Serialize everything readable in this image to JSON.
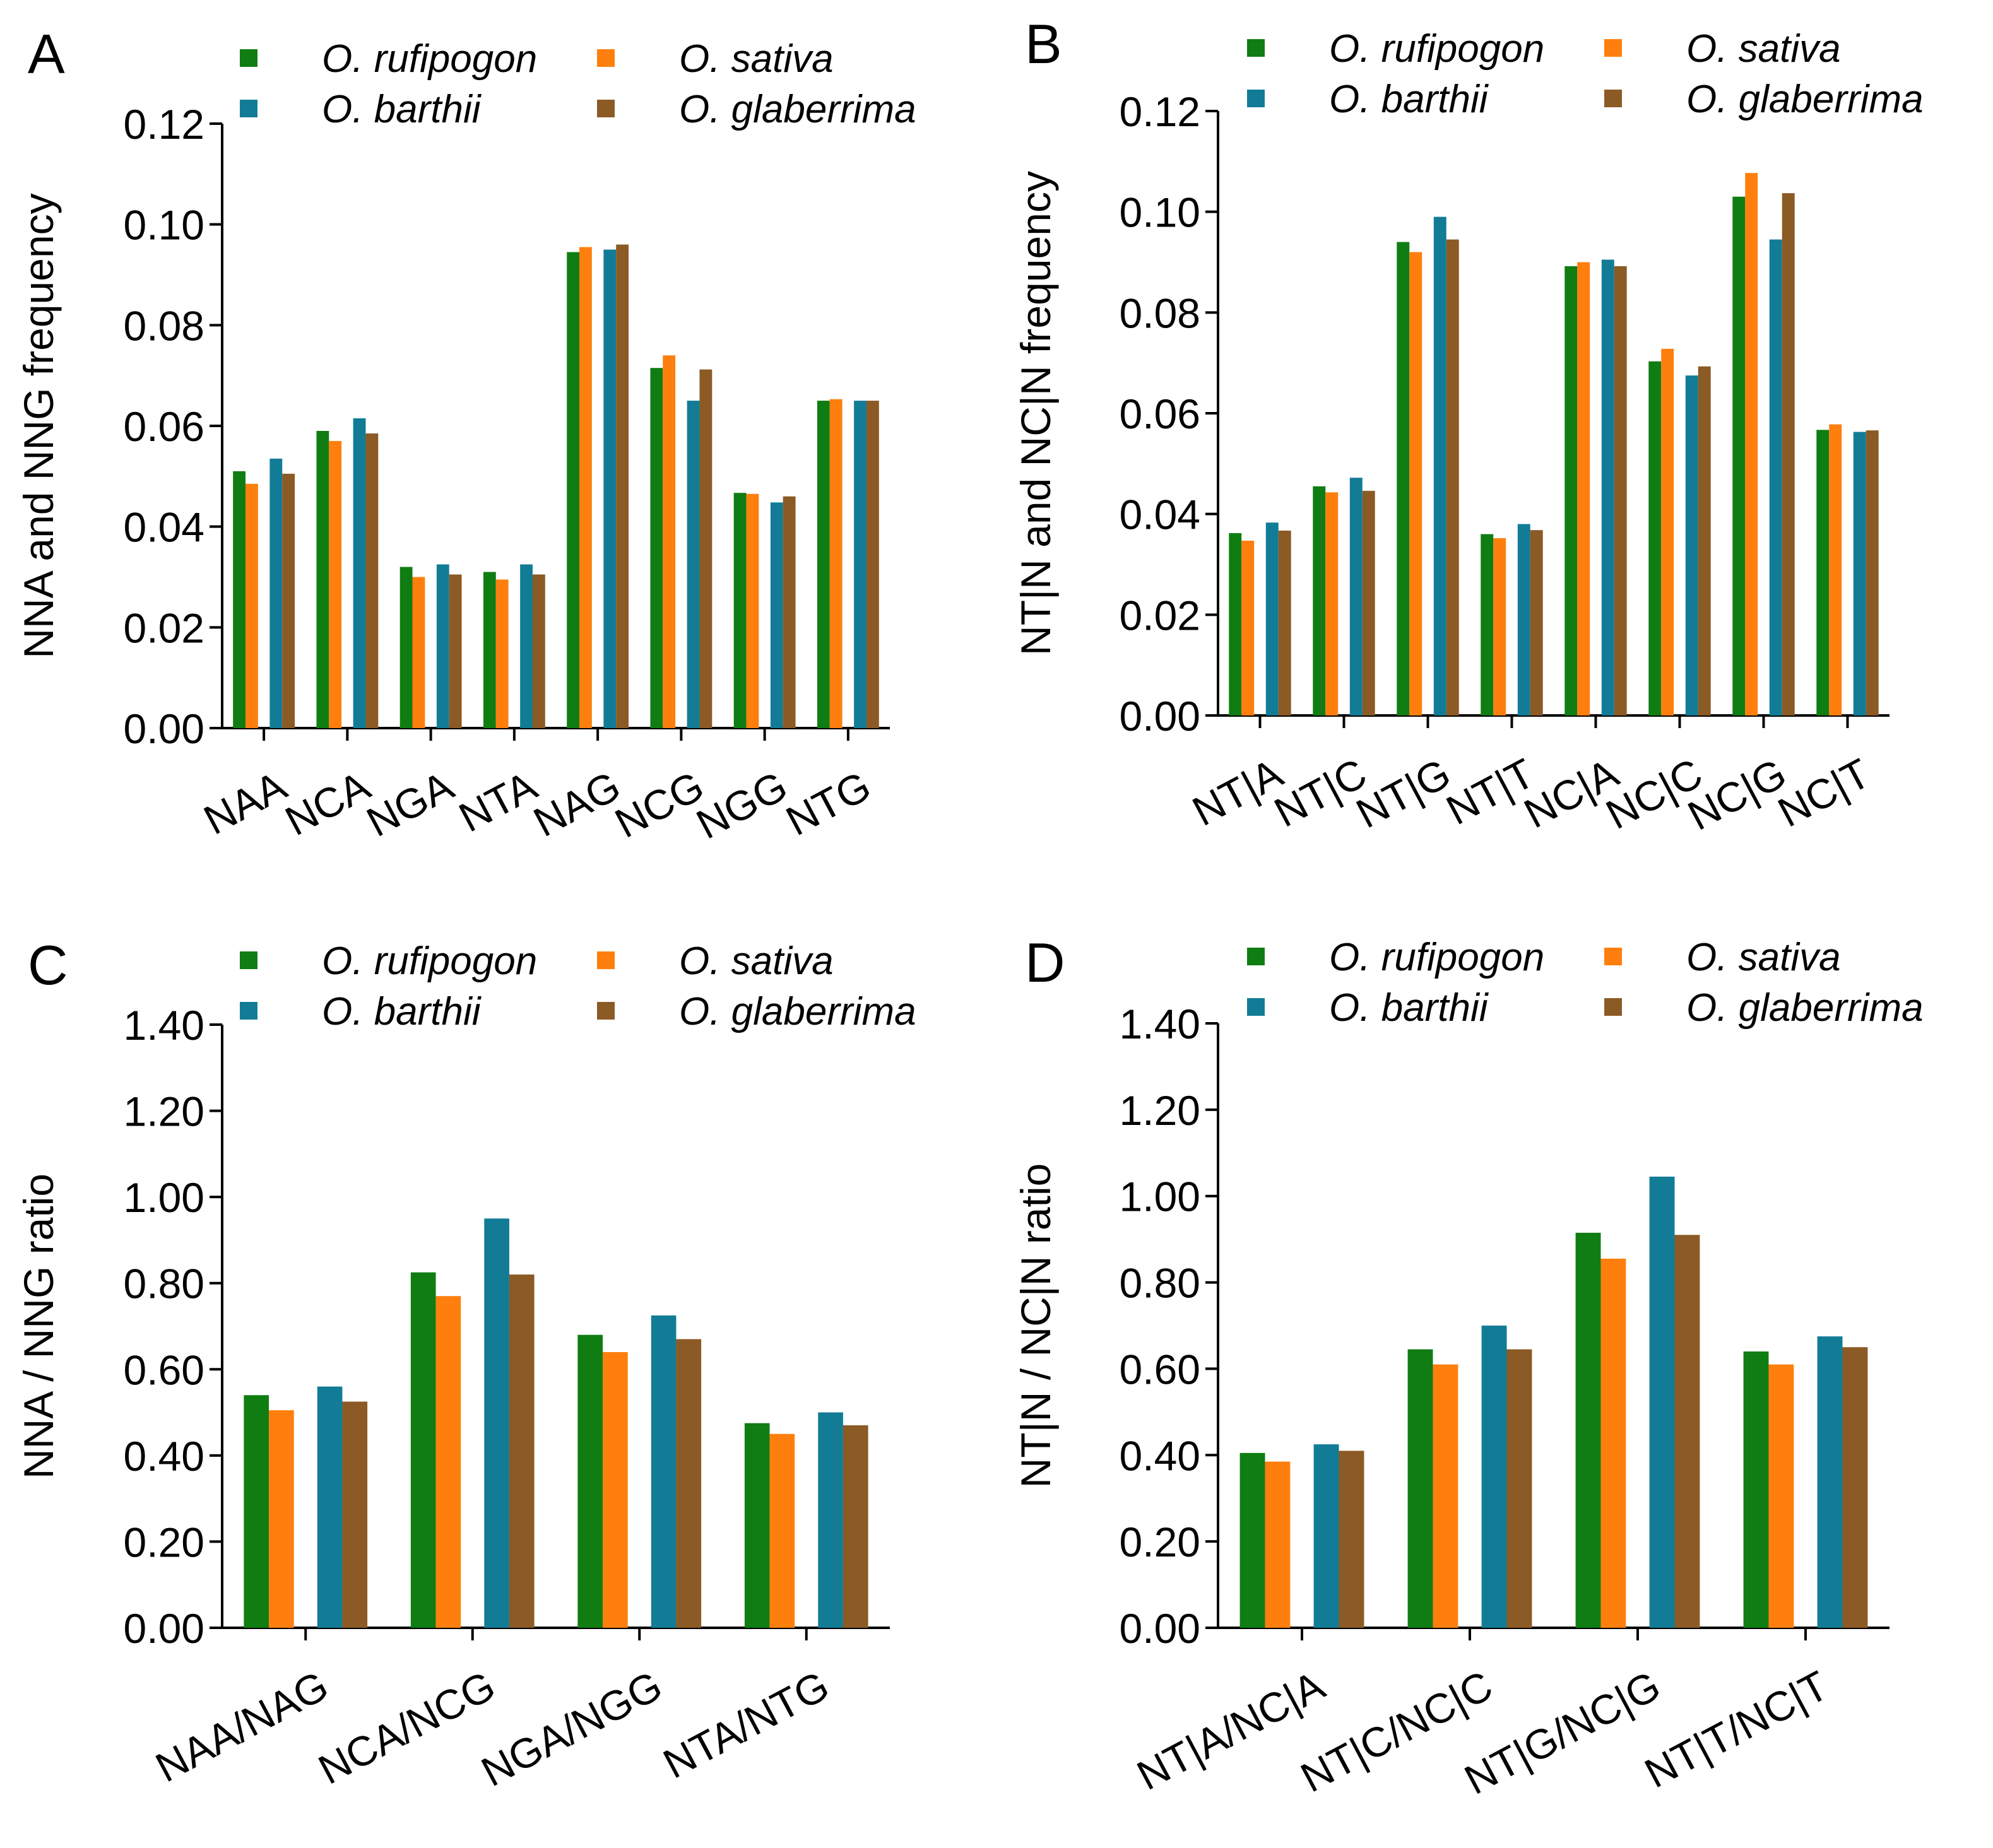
{
  "colors": {
    "O. rufipogon": "#0f7d12",
    "O. sativa": "#ff7f0e",
    "O. barthii": "#127c96",
    "O. glaberrima": "#8c5a25"
  },
  "chart_data": [
    {
      "panel": "A",
      "type": "bar",
      "ylabel": "NNA and NNG frequency",
      "ylim": [
        0,
        0.12
      ],
      "ystep": 0.02,
      "ydecimals": 2,
      "legend": [
        "O. rufipogon",
        "O. sativa",
        "O. barthii",
        "O. glaberrima"
      ],
      "categories": [
        "NAA",
        "NCA",
        "NGA",
        "NTA",
        "NAG",
        "NCG",
        "NGG",
        "NTG"
      ],
      "series": [
        {
          "name": "O. rufipogon",
          "values": [
            0.051,
            0.059,
            0.032,
            0.031,
            0.0945,
            0.0715,
            0.0467,
            0.065
          ]
        },
        {
          "name": "O. sativa",
          "values": [
            0.0485,
            0.057,
            0.03,
            0.0295,
            0.0955,
            0.074,
            0.0465,
            0.0653
          ]
        },
        {
          "name": "O. barthii",
          "values": [
            0.0535,
            0.0615,
            0.0325,
            0.0325,
            0.095,
            0.065,
            0.0448,
            0.065
          ]
        },
        {
          "name": "O. glaberrima",
          "values": [
            0.0505,
            0.0585,
            0.0305,
            0.0305,
            0.096,
            0.0712,
            0.046,
            0.065
          ]
        }
      ]
    },
    {
      "panel": "B",
      "type": "bar",
      "ylabel": "NT|N and NC|N frequency",
      "ylim": [
        0,
        0.12
      ],
      "ystep": 0.02,
      "ydecimals": 2,
      "legend": [
        "O. rufipogon",
        "O. sativa",
        "O. barthii",
        "O. glaberrima"
      ],
      "categories": [
        "NT|A",
        "NT|C",
        "NT|G",
        "NT|T",
        "NC|A",
        "NC|C",
        "NC|G",
        "NC|T"
      ],
      "series": [
        {
          "name": "O. rufipogon",
          "values": [
            0.0362,
            0.0455,
            0.094,
            0.036,
            0.0892,
            0.0703,
            0.103,
            0.0567
          ]
        },
        {
          "name": "O. sativa",
          "values": [
            0.0347,
            0.0443,
            0.092,
            0.0352,
            0.09,
            0.0728,
            0.1077,
            0.0578
          ]
        },
        {
          "name": "O. barthii",
          "values": [
            0.0383,
            0.0472,
            0.099,
            0.038,
            0.0905,
            0.0675,
            0.0945,
            0.0563
          ]
        },
        {
          "name": "O. glaberrima",
          "values": [
            0.0367,
            0.0446,
            0.0945,
            0.0368,
            0.0892,
            0.0693,
            0.1037,
            0.0566
          ]
        }
      ]
    },
    {
      "panel": "C",
      "type": "bar",
      "ylabel": "NNA / NNG ratio",
      "ylim": [
        0,
        1.4
      ],
      "ystep": 0.2,
      "ydecimals": 2,
      "legend": [
        "O. rufipogon",
        "O. sativa",
        "O. barthii",
        "O. glaberrima"
      ],
      "categories": [
        "NAA/NAG",
        "NCA/NCG",
        "NGA/NGG",
        "NTA/NTG"
      ],
      "series": [
        {
          "name": "O. rufipogon",
          "values": [
            0.54,
            0.825,
            0.68,
            0.475
          ]
        },
        {
          "name": "O. sativa",
          "values": [
            0.505,
            0.77,
            0.64,
            0.45
          ]
        },
        {
          "name": "O. barthii",
          "values": [
            0.56,
            0.95,
            0.725,
            0.5
          ]
        },
        {
          "name": "O. glaberrima",
          "values": [
            0.525,
            0.82,
            0.67,
            0.47
          ]
        }
      ]
    },
    {
      "panel": "D",
      "type": "bar",
      "ylabel": "NT|N / NC|N ratio",
      "ylim": [
        0,
        1.4
      ],
      "ystep": 0.2,
      "ydecimals": 2,
      "legend": [
        "O. rufipogon",
        "O. sativa",
        "O. barthii",
        "O. glaberrima"
      ],
      "categories": [
        "NT|A/NC|A",
        "NT|C/NC|C",
        "NT|G/NC|G",
        "NT|T/NC|T"
      ],
      "series": [
        {
          "name": "O. rufipogon",
          "values": [
            0.405,
            0.645,
            0.915,
            0.64
          ]
        },
        {
          "name": "O. sativa",
          "values": [
            0.385,
            0.61,
            0.855,
            0.61
          ]
        },
        {
          "name": "O. barthii",
          "values": [
            0.425,
            0.7,
            1.045,
            0.675
          ]
        },
        {
          "name": "O. glaberrima",
          "values": [
            0.41,
            0.645,
            0.91,
            0.65
          ]
        }
      ]
    }
  ]
}
